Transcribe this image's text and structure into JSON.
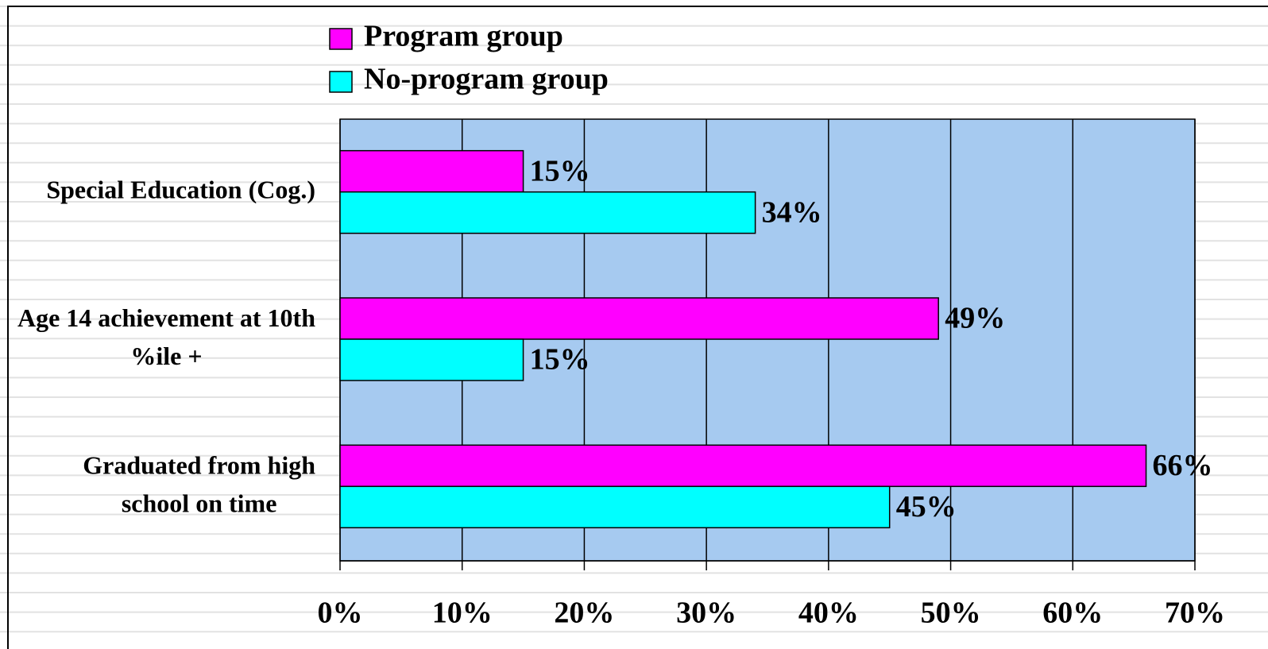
{
  "chart_data": {
    "type": "hbar",
    "categories": [
      "Special Education (Cog.)",
      "Age 14 achievement at 10th %ile +",
      "Graduated from high school on time"
    ],
    "series": [
      {
        "name": "Program group",
        "color": "#ff00ff",
        "values": [
          15,
          49,
          66
        ],
        "value_labels": [
          "15%",
          "49%",
          "66%"
        ]
      },
      {
        "name": "No-program group",
        "color": "#00ffff",
        "values": [
          34,
          15,
          45
        ],
        "value_labels": [
          "34%",
          "15%",
          "45%"
        ]
      }
    ],
    "xlim": [
      0,
      70
    ],
    "xticks": [
      {
        "value": 0,
        "label": "0%"
      },
      {
        "value": 10,
        "label": "10%"
      },
      {
        "value": 20,
        "label": "20%"
      },
      {
        "value": 30,
        "label": "30%"
      },
      {
        "value": 40,
        "label": "40%"
      },
      {
        "value": 50,
        "label": "50%"
      },
      {
        "value": 60,
        "label": "60%"
      },
      {
        "value": 70,
        "label": "70%"
      }
    ],
    "grid": true,
    "plot_background": "#a6caf0",
    "legend": "top"
  }
}
